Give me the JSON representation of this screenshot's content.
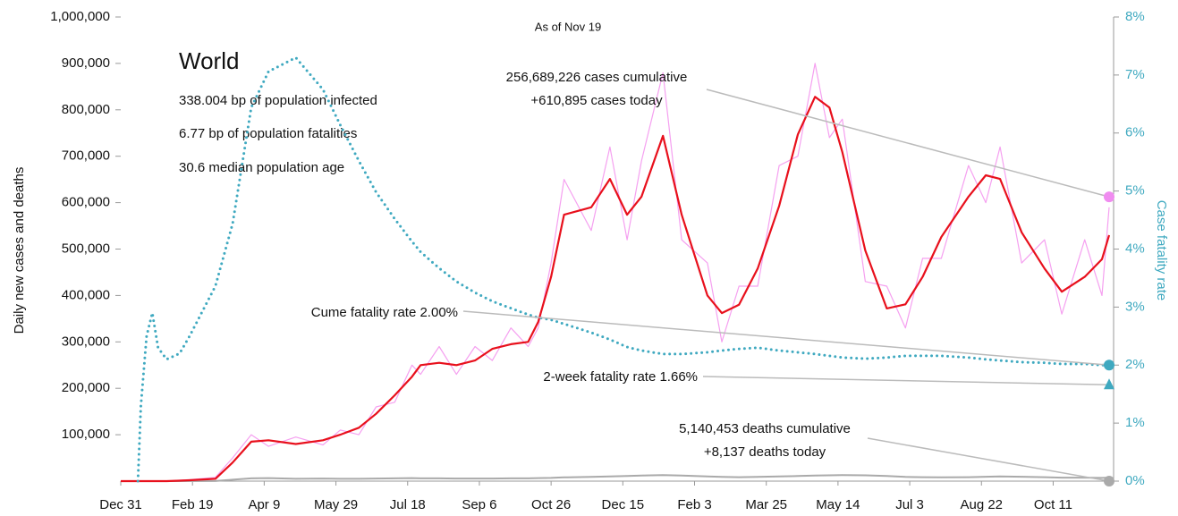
{
  "chart_data": {
    "type": "line",
    "subtitle": "As of Nov 19",
    "ylabel": "Daily new cases and deaths",
    "y2label": "Case fatality rate",
    "info": {
      "title": "World",
      "lines": [
        "338.004 bp of population infected",
        "6.77 bp of population fatalities",
        "30.6 median population age"
      ]
    },
    "xlim": [
      0,
      689
    ],
    "xticks": [
      {
        "value": 0,
        "label": "Dec 31"
      },
      {
        "value": 50,
        "label": "Feb 19"
      },
      {
        "value": 100,
        "label": "Apr 9"
      },
      {
        "value": 150,
        "label": "May 29"
      },
      {
        "value": 200,
        "label": "Jul 18"
      },
      {
        "value": 250,
        "label": "Sep 6"
      },
      {
        "value": 300,
        "label": "Oct 26"
      },
      {
        "value": 350,
        "label": "Dec 15"
      },
      {
        "value": 400,
        "label": "Feb 3"
      },
      {
        "value": 450,
        "label": "Mar 25"
      },
      {
        "value": 500,
        "label": "May 14"
      },
      {
        "value": 550,
        "label": "Jul 3"
      },
      {
        "value": 600,
        "label": "Aug 22"
      },
      {
        "value": 650,
        "label": "Oct 11"
      }
    ],
    "ylim": [
      0,
      1000000
    ],
    "yticks": [
      {
        "value": 100000,
        "label": "100,000"
      },
      {
        "value": 200000,
        "label": "200,000"
      },
      {
        "value": 300000,
        "label": "300,000"
      },
      {
        "value": 400000,
        "label": "400,000"
      },
      {
        "value": 500000,
        "label": "500,000"
      },
      {
        "value": 600000,
        "label": "600,000"
      },
      {
        "value": 700000,
        "label": "700,000"
      },
      {
        "value": 800000,
        "label": "800,000"
      },
      {
        "value": 900000,
        "label": "900,000"
      },
      {
        "value": 1000000,
        "label": "1,000,000"
      }
    ],
    "y2lim": [
      0,
      8
    ],
    "y2ticks": [
      {
        "value": 0,
        "label": "0%"
      },
      {
        "value": 1,
        "label": "1%"
      },
      {
        "value": 2,
        "label": "2%"
      },
      {
        "value": 3,
        "label": "3%"
      },
      {
        "value": 4,
        "label": "4%"
      },
      {
        "value": 5,
        "label": "5%"
      },
      {
        "value": 6,
        "label": "6%"
      },
      {
        "value": 7,
        "label": "7%"
      },
      {
        "value": 8,
        "label": "8%"
      }
    ],
    "x": [
      0,
      12,
      14,
      18,
      22,
      26,
      32,
      41,
      48,
      66,
      78,
      91,
      103,
      122,
      141,
      153,
      166,
      178,
      191,
      203,
      209,
      222,
      234,
      247,
      259,
      272,
      284,
      291,
      300,
      309,
      328,
      341,
      353,
      363,
      378,
      391,
      409,
      419,
      431,
      444,
      459,
      472,
      484,
      494,
      503,
      519,
      534,
      547,
      559,
      572,
      591,
      603,
      613,
      628,
      644,
      656,
      672,
      684,
      689
    ],
    "series": [
      {
        "color": "#f5a0f0",
        "width": 1.2,
        "values": [
          0,
          0,
          0,
          0,
          0,
          0,
          0,
          2000,
          3000,
          8000,
          50000,
          100000,
          75000,
          95000,
          78000,
          110000,
          100000,
          160000,
          170000,
          250000,
          230000,
          290000,
          230000,
          290000,
          260000,
          330000,
          290000,
          330000,
          470000,
          650000,
          540000,
          720000,
          520000,
          690000,
          880000,
          520000,
          470000,
          300000,
          420000,
          420000,
          680000,
          700000,
          900000,
          740000,
          780000,
          430000,
          420000,
          330000,
          480000,
          480000,
          680000,
          600000,
          720000,
          470000,
          520000,
          360000,
          520000,
          400000,
          590000
        ]
      },
      {
        "color": "#aaaaaa",
        "width": 2,
        "values": [
          0,
          0,
          0,
          0,
          0,
          0,
          0,
          0,
          0,
          200,
          3000,
          6000,
          6500,
          5000,
          5500,
          5000,
          5000,
          5500,
          6000,
          6500,
          6000,
          6000,
          5500,
          5500,
          5500,
          6000,
          6000,
          6500,
          7000,
          8000,
          9000,
          10000,
          11000,
          12000,
          13000,
          12000,
          10000,
          9000,
          8500,
          9000,
          10000,
          11000,
          12000,
          12500,
          13000,
          12500,
          11000,
          9000,
          8500,
          8000,
          8500,
          9500,
          10000,
          9500,
          8500,
          7500,
          7500,
          7000,
          7500
        ]
      },
      {
        "color": "#e8101c",
        "width": 2.2,
        "values": [
          0,
          0,
          0,
          0,
          0,
          0,
          0,
          1000,
          2000,
          5000,
          40000,
          85000,
          88000,
          80000,
          88000,
          100000,
          115000,
          145000,
          185000,
          225000,
          250000,
          255000,
          250000,
          260000,
          285000,
          295000,
          300000,
          343000,
          440000,
          574000,
          590000,
          651000,
          574000,
          613000,
          744000,
          574000,
          400000,
          362000,
          380000,
          458000,
          593000,
          747000,
          828000,
          805000,
          709000,
          497000,
          372000,
          381000,
          440000,
          526000,
          613000,
          659000,
          651000,
          536000,
          458000,
          408000,
          440000,
          478000,
          530000
        ]
      },
      {
        "color": "#3fa9c0",
        "width": 3,
        "dotted": true,
        "axis": "y2",
        "values": [
          null,
          0,
          1.3,
          2.5,
          2.9,
          2.3,
          2.1,
          2.2,
          2.5,
          3.36,
          4.44,
          6.44,
          7.06,
          7.3,
          6.75,
          6.14,
          5.52,
          4.98,
          4.52,
          4.13,
          3.95,
          3.67,
          3.44,
          3.25,
          3.1,
          2.98,
          2.87,
          2.82,
          2.78,
          2.71,
          2.56,
          2.44,
          2.31,
          2.25,
          2.19,
          2.19,
          2.22,
          2.25,
          2.28,
          2.3,
          2.25,
          2.22,
          2.19,
          2.16,
          2.13,
          2.11,
          2.13,
          2.16,
          2.16,
          2.16,
          2.13,
          2.1,
          2.08,
          2.05,
          2.04,
          2.02,
          2.02,
          2.0,
          2.0
        ]
      }
    ],
    "annotations": [
      {
        "lines": [
          "256,689,226 cases cumulative",
          "+610,895 cases today"
        ],
        "marker": 4.9,
        "shape": "circle",
        "color": "#f08cf0"
      },
      {
        "lines": [
          "Cume fatality rate 2.00%"
        ],
        "marker": 2.0,
        "shape": "circle",
        "color": "#3fa9c0"
      },
      {
        "lines": [
          "2-week fatality rate 1.66%"
        ],
        "marker": 1.66,
        "shape": "triangle",
        "color": "#3fa9c0"
      },
      {
        "lines": [
          "5,140,453 deaths cumulative",
          "+8,137 deaths today"
        ],
        "marker": 0,
        "shape": "circle",
        "color": "#aaaaaa"
      }
    ]
  }
}
